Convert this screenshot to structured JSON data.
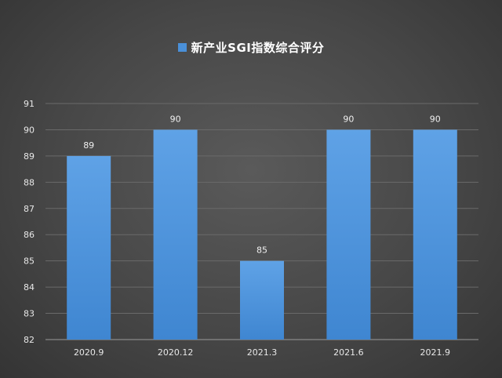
{
  "chart_data": {
    "type": "bar",
    "title": "",
    "legend": [
      "新产业SGI指数综合评分"
    ],
    "legend_position": "top",
    "categories": [
      "2020.9",
      "2020.12",
      "2021.3",
      "2021.6",
      "2021.9"
    ],
    "series": [
      {
        "name": "新产业SGI指数综合评分",
        "values": [
          89,
          90,
          85,
          90,
          90
        ]
      }
    ],
    "data_labels": [
      "89",
      "90",
      "85",
      "90",
      "90"
    ],
    "y_ticks": [
      "82",
      "83",
      "84",
      "85",
      "86",
      "87",
      "88",
      "89",
      "90",
      "91"
    ],
    "ylim": [
      82,
      91
    ],
    "grid": true,
    "xlabel": "",
    "ylabel": "",
    "colors": {
      "bar": "#4a90d9",
      "background": "#474747",
      "grid": "#6a6a6a",
      "text": "#e8e8e8"
    }
  }
}
